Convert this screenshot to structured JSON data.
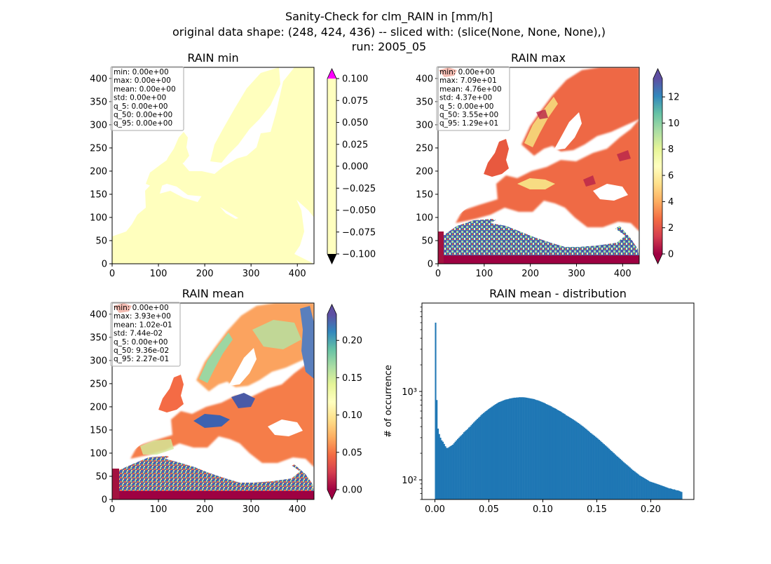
{
  "figure": {
    "suptitle_lines": [
      "Sanity-Check for clm_RAIN in [mm/h]",
      "original data shape: (248, 424, 436) -- sliced with: (slice(None, None, None),)",
      "run: 2005_05"
    ]
  },
  "colormap": {
    "name": "Spectral",
    "stops": [
      "#9e0142",
      "#d53e4f",
      "#f46d43",
      "#fdae61",
      "#fee08b",
      "#ffffbf",
      "#e6f598",
      "#abdda4",
      "#66c2a5",
      "#3288bd",
      "#5e4fa2"
    ],
    "over_min_panel": "#ff00ff",
    "under_min_panel": "#000000",
    "hist_color": "#1f77b4"
  },
  "chart_data": [
    {
      "type": "heatmap",
      "title": "RAIN min",
      "x_ticks": [
        "0",
        "100",
        "200",
        "300",
        "400"
      ],
      "y_ticks": [
        "0",
        "50",
        "100",
        "150",
        "200",
        "250",
        "300",
        "350",
        "400"
      ],
      "xlim": [
        0,
        436
      ],
      "ylim": [
        0,
        424
      ],
      "colorbar": {
        "vmin": -0.1,
        "vmax": 0.1,
        "ticks": [
          "0.100",
          "0.075",
          "0.050",
          "0.025",
          "0.000",
          "−0.025",
          "−0.050",
          "−0.075",
          "−0.100"
        ]
      },
      "stats": [
        "min: 0.00e+00",
        "max: 0.00e+00",
        "mean: 0.00e+00",
        "std: 0.00e+00",
        "q_5: 0.00e+00",
        "q_50: 0.00e+00",
        "q_95: 0.00e+00"
      ]
    },
    {
      "type": "heatmap",
      "title": "RAIN max",
      "x_ticks": [
        "0",
        "100",
        "200",
        "300",
        "400"
      ],
      "y_ticks": [
        "0",
        "50",
        "100",
        "150",
        "200",
        "250",
        "300",
        "350",
        "400"
      ],
      "xlim": [
        0,
        436
      ],
      "ylim": [
        0,
        424
      ],
      "colorbar": {
        "vmin": 0,
        "vmax": 13.4,
        "ticks": [
          "12",
          "10",
          "8",
          "6",
          "4",
          "2",
          "0"
        ]
      },
      "stats": [
        "min: 0.00e+00",
        "max: 7.09e+01",
        "mean: 4.76e+00",
        "std: 4.37e+00",
        "q_5: 0.00e+00",
        "q_50: 3.55e+00",
        "q_95: 1.29e+01"
      ]
    },
    {
      "type": "heatmap",
      "title": "RAIN mean",
      "x_ticks": [
        "0",
        "100",
        "200",
        "300",
        "400"
      ],
      "y_ticks": [
        "0",
        "50",
        "100",
        "150",
        "200",
        "250",
        "300",
        "350",
        "400"
      ],
      "xlim": [
        0,
        436
      ],
      "ylim": [
        0,
        424
      ],
      "colorbar": {
        "vmin": 0,
        "vmax": 0.235,
        "ticks": [
          "0.20",
          "0.15",
          "0.10",
          "0.05",
          "0.00"
        ]
      },
      "stats": [
        "min: 0.00e+00",
        "max: 3.93e+00",
        "mean: 1.02e-01",
        "std: 7.44e-02",
        "q_5: 0.00e+00",
        "q_50: 9.36e-02",
        "q_95: 2.27e-01"
      ]
    },
    {
      "type": "bar",
      "title": "RAIN mean - distribution",
      "ylabel": "# of occurrence",
      "xlabel": "",
      "log_y": true,
      "xlim": [
        -0.012,
        0.24
      ],
      "ylim": [
        60,
        10000
      ],
      "x_ticks": [
        "0.00",
        "0.05",
        "0.10",
        "0.15",
        "0.20"
      ],
      "y_ticks": [
        "10²",
        "10³"
      ],
      "histogram": {
        "bin_start": 0.0,
        "bin_width": 0.00114,
        "n_bins": 199,
        "counts": [
          6000,
          800,
          380,
          330,
          300,
          280,
          270,
          255,
          240,
          230,
          230,
          235,
          240,
          245,
          250,
          260,
          270,
          280,
          290,
          300,
          310,
          320,
          330,
          345,
          355,
          365,
          375,
          390,
          400,
          415,
          430,
          445,
          460,
          475,
          490,
          505,
          520,
          540,
          555,
          570,
          585,
          600,
          615,
          630,
          645,
          660,
          675,
          690,
          705,
          720,
          735,
          750,
          760,
          770,
          780,
          790,
          800,
          810,
          815,
          820,
          830,
          835,
          840,
          845,
          850,
          850,
          855,
          855,
          860,
          860,
          860,
          860,
          858,
          855,
          850,
          845,
          840,
          835,
          830,
          825,
          820,
          810,
          800,
          795,
          785,
          775,
          765,
          755,
          745,
          735,
          720,
          710,
          700,
          690,
          680,
          665,
          655,
          645,
          635,
          620,
          610,
          600,
          590,
          575,
          565,
          555,
          540,
          530,
          520,
          510,
          500,
          490,
          480,
          470,
          460,
          450,
          440,
          430,
          420,
          410,
          400,
          390,
          380,
          370,
          360,
          350,
          340,
          332,
          324,
          316,
          308,
          300,
          292,
          284,
          276,
          268,
          260,
          253,
          246,
          239,
          232,
          225,
          218,
          212,
          206,
          200,
          194,
          188,
          183,
          178,
          173,
          168,
          163,
          158,
          154,
          150,
          146,
          142,
          138,
          134,
          130,
          127,
          124,
          121,
          118,
          115,
          112,
          110,
          108,
          106,
          104,
          102,
          100,
          98,
          96,
          95,
          94,
          93,
          92,
          91,
          90,
          89,
          88,
          87,
          86,
          85,
          84,
          83,
          82,
          81,
          80,
          80,
          79,
          78,
          78,
          77,
          76,
          76,
          75,
          74,
          73
        ]
      }
    }
  ]
}
